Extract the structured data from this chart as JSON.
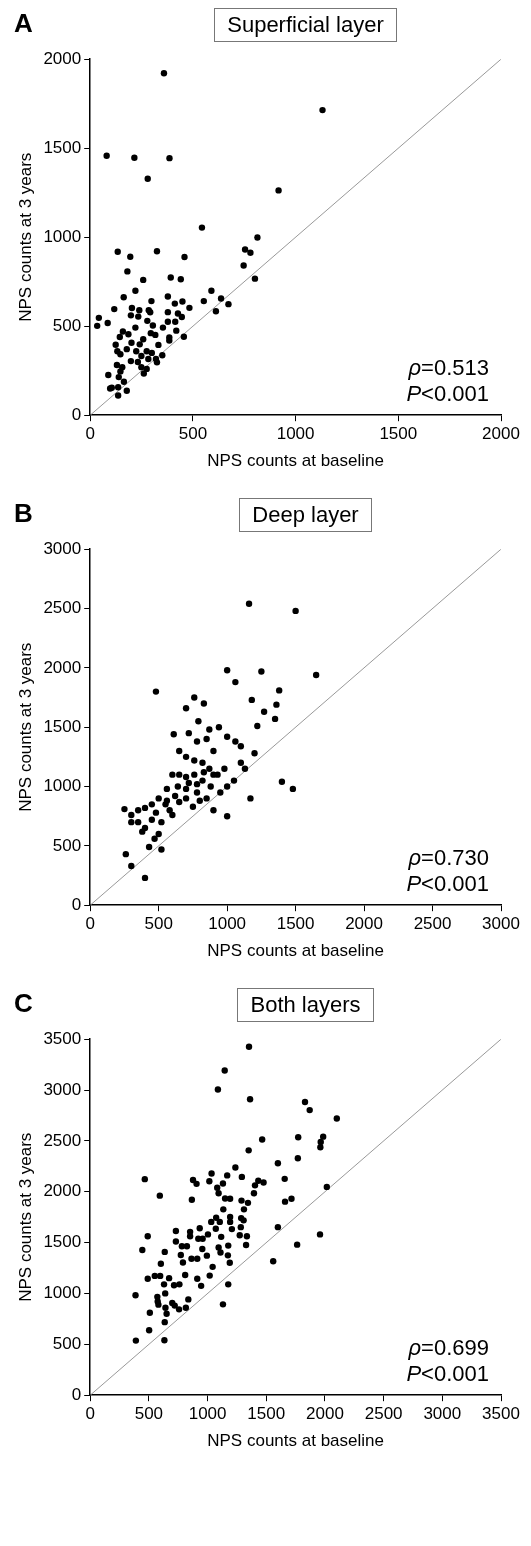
{
  "chart_data": [
    {
      "type": "scatter",
      "title": "Superficial layer",
      "xlabel": "NPS counts at baseline",
      "ylabel": "NPS counts at 3 years",
      "annotations": [
        "A",
        "ρ=0.513",
        "P<0.001"
      ],
      "xlim": [
        0,
        2000
      ],
      "ylim": [
        0,
        2000
      ],
      "xticks": [
        0,
        500,
        1000,
        1500,
        2000
      ],
      "yticks": [
        0,
        500,
        1000,
        1500,
        2000
      ],
      "series": [
        {
          "type": "scatter",
          "color": "#000000",
          "marker": "circle",
          "x": [
            359,
            1131,
            80,
            215,
            386,
            280,
            917,
            544,
            814,
            134,
            325,
            754,
            780,
            195,
            459,
            747,
            181,
            392,
            441,
            258,
            802,
            220,
            590,
            163,
            378,
            298,
            553,
            637,
            449,
            412,
            117,
            203,
            239,
            285,
            483,
            673,
            612,
            378,
            427,
            198,
            234,
            292,
            446,
            42,
            85,
            34,
            278,
            305,
            414,
            378,
            354,
            220,
            159,
            186,
            144,
            295,
            317,
            385,
            456,
            419,
            258,
            201,
            124,
            385,
            241,
            332,
            178,
            132,
            147,
            224,
            275,
            300,
            249,
            351,
            320,
            198,
            232,
            283,
            325,
            130,
            156,
            249,
            275,
            147,
            261,
            88,
            139,
            164,
            105,
            136,
            178,
            136,
            97
          ],
          "values": [
            1921,
            1714,
            1458,
            1446,
            1444,
            1328,
            1263,
            1054,
            998,
            918,
            921,
            931,
            913,
            890,
            889,
            841,
            808,
            774,
            764,
            760,
            767,
            699,
            699,
            663,
            667,
            641,
            641,
            656,
            639,
            627,
            596,
            602,
            590,
            590,
            603,
            624,
            584,
            579,
            571,
            561,
            554,
            578,
            552,
            547,
            518,
            502,
            530,
            504,
            525,
            525,
            492,
            492,
            470,
            455,
            439,
            461,
            451,
            437,
            441,
            475,
            427,
            407,
            396,
            419,
            398,
            395,
            371,
            359,
            342,
            359,
            359,
            350,
            333,
            337,
            316,
            304,
            299,
            316,
            297,
            282,
            270,
            270,
            260,
            246,
            234,
            226,
            214,
            188,
            154,
            157,
            137,
            111,
            150
          ]
        },
        {
          "type": "line",
          "color": "#999999",
          "marker": "none",
          "x": [
            0,
            2000
          ],
          "values": [
            0,
            2000
          ]
        }
      ]
    },
    {
      "type": "scatter",
      "title": "Deep layer",
      "xlabel": "NPS counts at baseline",
      "ylabel": "NPS counts at 3 years",
      "annotations": [
        "B",
        "ρ=0.730",
        "P<0.001"
      ],
      "xlim": [
        0,
        3000
      ],
      "ylim": [
        0,
        3000
      ],
      "xticks": [
        0,
        500,
        1000,
        1500,
        2000,
        2500,
        3000
      ],
      "yticks": [
        0,
        500,
        1000,
        1500,
        2000,
        2500,
        3000
      ],
      "series": [
        {
          "type": "scatter",
          "color": "#000000",
          "marker": "circle",
          "x": [
            1160,
            1500,
            1650,
            1000,
            1250,
            1380,
            1060,
            1180,
            1270,
            1350,
            1360,
            1220,
            1200,
            1170,
            1400,
            1480,
            480,
            610,
            760,
            830,
            700,
            870,
            940,
            1000,
            1060,
            1100,
            790,
            720,
            780,
            850,
            900,
            650,
            700,
            760,
            820,
            870,
            930,
            980,
            1050,
            1000,
            1130,
            1100,
            600,
            650,
            700,
            760,
            820,
            880,
            950,
            1000,
            900,
            850,
            780,
            700,
            640,
            560,
            500,
            450,
            400,
            350,
            300,
            250,
            300,
            350,
            400,
            450,
            520,
            580,
            650,
            700,
            750,
            800,
            500,
            470,
            430,
            520,
            380,
            260,
            300,
            400,
            600,
            550,
            480,
            620,
            720,
            560,
            900,
            780,
            830
          ],
          "values": [
            2540,
            2480,
            1940,
            1980,
            1970,
            1810,
            1880,
            1730,
            1630,
            1570,
            1690,
            1510,
            1280,
            900,
            1040,
            980,
            1800,
            1440,
            1750,
            1700,
            1660,
            1480,
            1500,
            1420,
            1380,
            1340,
            1550,
            1450,
            1380,
            1400,
            1300,
            1300,
            1250,
            1220,
            1200,
            1150,
            1100,
            1150,
            1050,
            1000,
            1150,
            1200,
            1100,
            1100,
            1080,
            1100,
            1050,
            1000,
            950,
            750,
            800,
            900,
            950,
            980,
            1000,
            980,
            900,
            850,
            820,
            800,
            760,
            810,
            700,
            700,
            650,
            720,
            700,
            800,
            870,
            900,
            830,
            880,
            600,
            560,
            490,
            470,
            620,
            430,
            330,
            230,
            760,
            850,
            780,
            920,
            1030,
            880,
            1100,
            1020,
            1120
          ]
        },
        {
          "type": "line",
          "color": "#999999",
          "marker": "none",
          "x": [
            0,
            3000
          ],
          "values": [
            0,
            3000
          ]
        }
      ]
    },
    {
      "type": "scatter",
      "title": "Both layers",
      "xlabel": "NPS counts at baseline",
      "ylabel": "NPS counts at 3 years",
      "annotations": [
        "C",
        "ρ=0.699",
        "P<0.001"
      ],
      "xlim": [
        0,
        3500
      ],
      "ylim": [
        0,
        3500
      ],
      "xticks": [
        0,
        500,
        1000,
        1500,
        2000,
        2500,
        3000,
        3500
      ],
      "yticks": [
        0,
        500,
        1000,
        1500,
        2000,
        2500,
        3000,
        3500
      ],
      "series": [
        {
          "type": "scatter",
          "color": "#000000",
          "marker": "circle",
          "x": [
            1353,
            1146,
            1088,
            1362,
            1830,
            1870,
            2101,
            1465,
            1772,
            1985,
            1964,
            1961,
            1350,
            1769,
            1599,
            1237,
            1034,
            1167,
            1292,
            465,
            876,
            906,
            1015,
            1131,
            1432,
            1477,
            1657,
            1404,
            2016,
            1082,
            1094,
            1395,
            593,
            866,
            1149,
            1192,
            1289,
            1344,
            1660,
            1715,
            1134,
            1310,
            1073,
            1192,
            1286,
            1307,
            1031,
            1104,
            1192,
            933,
            1207,
            1599,
            1283,
            730,
            851,
            1070,
            490,
            1958,
            1274,
            1335,
            851,
            1003,
            1116,
            921,
            730,
            958,
            781,
            824,
            1176,
            1328,
            1763,
            444,
            635,
            1094,
            955,
            772,
            863,
            994,
            1110,
            1173,
            1559,
            790,
            912,
            602,
            1189,
            1043,
            550,
            596,
            490,
            672,
            809,
            912,
            1018,
            629,
            714,
            760,
            945,
            1176,
            386,
            639,
            572,
            575,
            581,
            699,
            836,
            720,
            815,
            757,
            641,
            508,
            651,
            1131,
            635,
            502,
            389,
            632
          ],
          "values": [
            3426,
            3193,
            3006,
            2910,
            2883,
            2803,
            2720,
            2514,
            2536,
            2542,
            2490,
            2438,
            2407,
            2330,
            2281,
            2238,
            2180,
            2161,
            2146,
            2124,
            2115,
            2078,
            2103,
            2081,
            2109,
            2091,
            2127,
            2063,
            2048,
            2039,
            1986,
            1986,
            1962,
            1922,
            1934,
            1931,
            1913,
            1891,
            1903,
            1931,
            1827,
            1827,
            1744,
            1753,
            1741,
            1719,
            1704,
            1704,
            1704,
            1642,
            1633,
            1652,
            1652,
            1615,
            1606,
            1636,
            1563,
            1581,
            1572,
            1563,
            1563,
            1581,
            1557,
            1538,
            1511,
            1538,
            1464,
            1464,
            1471,
            1477,
            1480,
            1428,
            1409,
            1452,
            1437,
            1378,
            1342,
            1372,
            1403,
            1375,
            1317,
            1305,
            1342,
            1292,
            1302,
            1262,
            1173,
            1173,
            1145,
            1151,
            1182,
            1145,
            1176,
            1090,
            1081,
            1090,
            1075,
            1090,
            982,
            1001,
            967,
            921,
            890,
            906,
            942,
            881,
            860,
            844,
            860,
            810,
            801,
            893,
            718,
            639,
            537,
            540
          ]
        },
        {
          "type": "line",
          "color": "#999999",
          "marker": "none",
          "x": [
            0,
            3500
          ],
          "values": [
            0,
            3500
          ]
        }
      ]
    }
  ]
}
